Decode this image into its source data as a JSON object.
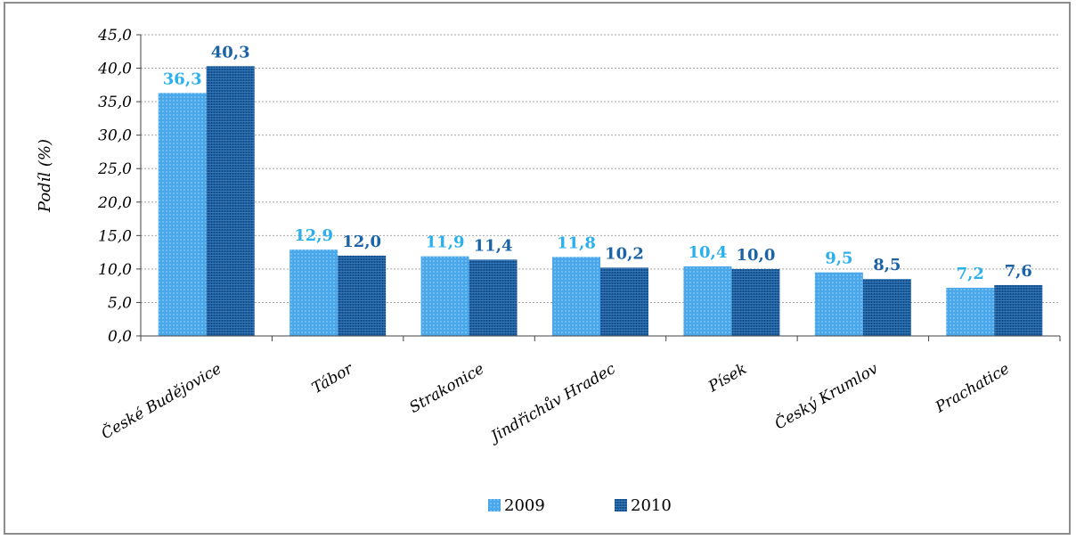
{
  "chart_data": {
    "type": "bar",
    "categories": [
      "České Budějovice",
      "Tábor",
      "Strakonice",
      "Jindřichův Hradec",
      "Písek",
      "Český Krumlov",
      "Prachatice"
    ],
    "series": [
      {
        "name": "2009",
        "values": [
          36.3,
          12.9,
          11.9,
          11.8,
          10.4,
          9.5,
          7.2
        ],
        "labels": [
          "36,3",
          "12,9",
          "11,9",
          "11,8",
          "10,4",
          "9,5",
          "7,2"
        ],
        "color": "#4aa8ea",
        "label_color": "#2ab0ec"
      },
      {
        "name": "2010",
        "values": [
          40.3,
          12.0,
          11.4,
          10.2,
          10.0,
          8.5,
          7.6
        ],
        "labels": [
          "40,3",
          "12,0",
          "11,4",
          "10,2",
          "10,0",
          "8,5",
          "7,6"
        ],
        "color": "#1d5fa0",
        "label_color": "#1a63a6"
      }
    ],
    "ylabel": "Podíl (%)",
    "ylim": [
      0,
      45
    ],
    "yticks": [
      "0,0",
      "5,0",
      "10,0",
      "15,0",
      "20,0",
      "25,0",
      "30,0",
      "35,0",
      "40,0",
      "45,0"
    ],
    "grid": true,
    "legend": "bottom"
  }
}
